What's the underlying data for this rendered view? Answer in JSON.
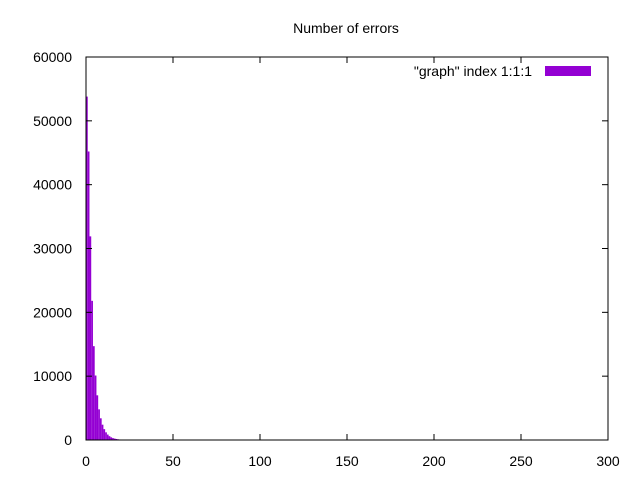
{
  "chart_data": {
    "type": "bar",
    "title": "Number of errors",
    "xlabel": "",
    "ylabel": "",
    "xlim": [
      0,
      300
    ],
    "ylim": [
      0,
      60000
    ],
    "x_ticks": [
      0,
      50,
      100,
      150,
      200,
      250,
      300
    ],
    "y_ticks": [
      0,
      10000,
      20000,
      30000,
      40000,
      50000,
      60000
    ],
    "tick_labels_x": [
      "0",
      "50",
      "100",
      "150",
      "200",
      "250",
      "300"
    ],
    "tick_labels_y": [
      "0",
      "10000",
      "20000",
      "30000",
      "40000",
      "50000",
      "60000"
    ],
    "grid": false,
    "legend_position": "top-right",
    "bin_width": 1,
    "series": [
      {
        "name": "\"graph\" index 1:1:1",
        "color": "#9400d3",
        "x": [
          0,
          1,
          2,
          3,
          4,
          5,
          6,
          7,
          8,
          9,
          10,
          11,
          12,
          13,
          14,
          15,
          16,
          17,
          18,
          19,
          20,
          21,
          22,
          23,
          24,
          25
        ],
        "values": [
          53800,
          45200,
          31900,
          21800,
          14700,
          10100,
          7000,
          4800,
          3400,
          2400,
          1700,
          1200,
          850,
          600,
          420,
          300,
          220,
          160,
          110,
          80,
          60,
          45,
          30,
          20,
          14,
          8
        ]
      }
    ]
  }
}
